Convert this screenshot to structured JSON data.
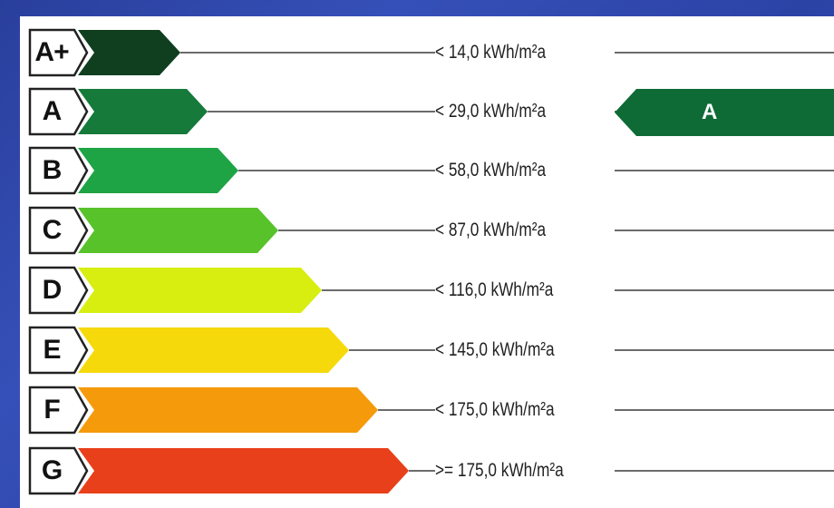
{
  "energy_label": {
    "classes": [
      {
        "letter": "A+",
        "value": "< 14,0 kWh/m²a",
        "color": "#0f3f1f"
      },
      {
        "letter": "A",
        "value": "< 29,0 kWh/m²a",
        "color": "#157a3a"
      },
      {
        "letter": "B",
        "value": "< 58,0 kWh/m²a",
        "color": "#1ea445"
      },
      {
        "letter": "C",
        "value": "< 87,0 kWh/m²a",
        "color": "#57c22a"
      },
      {
        "letter": "D",
        "value": "< 116,0 kWh/m²a",
        "color": "#d7ee10"
      },
      {
        "letter": "E",
        "value": "< 145,0 kWh/m²a",
        "color": "#f6d90a"
      },
      {
        "letter": "F",
        "value": "< 175,0 kWh/m²a",
        "color": "#f59a0a"
      },
      {
        "letter": "G",
        "value": ">= 175,0 kWh/m²a",
        "color": "#e8401a"
      }
    ],
    "current_rating": {
      "letter": "A",
      "color": "#0e6b35"
    }
  }
}
